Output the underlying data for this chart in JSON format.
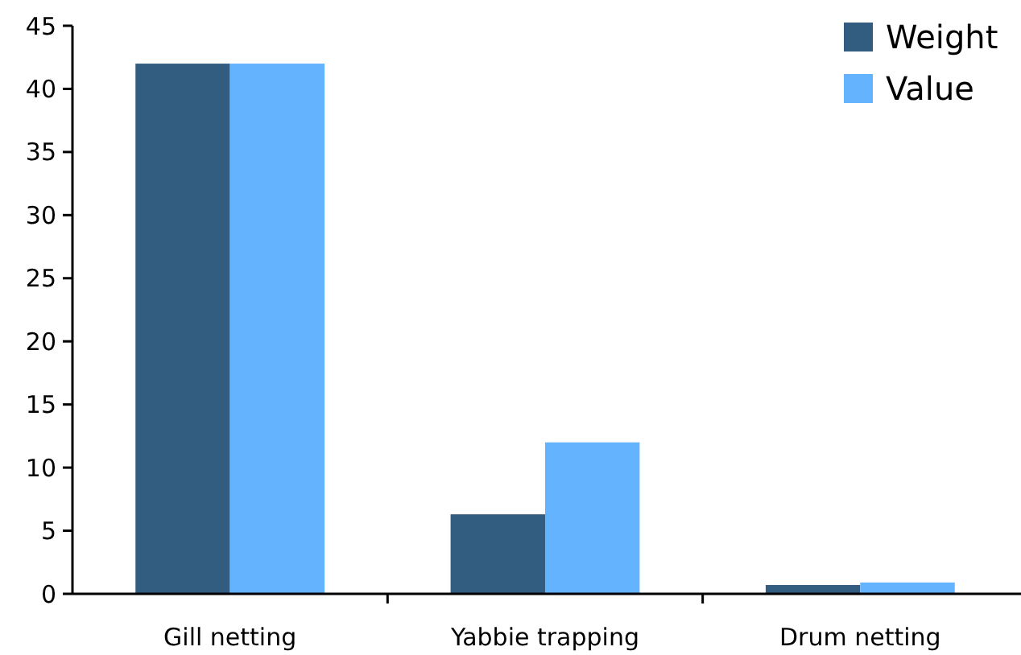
{
  "chart_data": {
    "type": "bar",
    "categories": [
      "Gill netting",
      "Yabbie trapping",
      "Drum netting"
    ],
    "series": [
      {
        "name": "Weight",
        "color": "#325c80",
        "values": [
          42,
          6.3,
          0.7
        ]
      },
      {
        "name": "Value",
        "color": "#63b3fe",
        "values": [
          42,
          12,
          0.9
        ]
      }
    ],
    "ylim": [
      0,
      45
    ],
    "yticks": [
      0,
      5,
      10,
      15,
      20,
      25,
      30,
      35,
      40,
      45
    ],
    "grid": false,
    "legend": "top right"
  }
}
